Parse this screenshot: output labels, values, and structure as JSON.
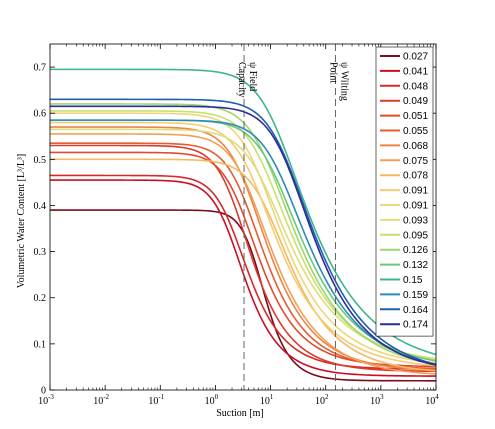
{
  "chart_data": {
    "type": "line",
    "xlabel": "Suction [m]",
    "ylabel": "Volumetric Water Content [L³/L³]",
    "x_scale": "log",
    "xlim": [
      0.001,
      10000
    ],
    "ylim": [
      0,
      0.75
    ],
    "x_ticks": [
      "10-3",
      "10-2",
      "10-1",
      "100",
      "101",
      "102",
      "103",
      "104"
    ],
    "y_ticks": [
      "0",
      "0.1",
      "0.2",
      "0.3",
      "0.4",
      "0.5",
      "0.6",
      "0.7"
    ],
    "legend_position": "top-right",
    "annotations": [
      {
        "text": "ψ Field Capacity",
        "x": 3.3
      },
      {
        "text": "ψ Wilting Point",
        "x": 150
      }
    ],
    "series": [
      {
        "name": "0.027",
        "color": "#7a0a1e",
        "theta_r": 0.02,
        "theta_s": 0.39,
        "alpha": 0.18,
        "n": 2.4
      },
      {
        "name": "0.041",
        "color": "#c80f24",
        "theta_r": 0.03,
        "theta_s": 0.455,
        "alpha": 0.55,
        "n": 1.9
      },
      {
        "name": "0.048",
        "color": "#d62828",
        "theta_r": 0.045,
        "theta_s": 0.465,
        "alpha": 0.5,
        "n": 1.85
      },
      {
        "name": "0.049",
        "color": "#dc3a2a",
        "theta_r": 0.04,
        "theta_s": 0.53,
        "alpha": 0.45,
        "n": 1.8
      },
      {
        "name": "0.051",
        "color": "#e04a2e",
        "theta_r": 0.05,
        "theta_s": 0.515,
        "alpha": 0.35,
        "n": 1.75
      },
      {
        "name": "0.055",
        "color": "#e45c32",
        "theta_r": 0.045,
        "theta_s": 0.535,
        "alpha": 0.3,
        "n": 1.7
      },
      {
        "name": "0.068",
        "color": "#ee8444",
        "theta_r": 0.04,
        "theta_s": 0.57,
        "alpha": 0.28,
        "n": 1.65
      },
      {
        "name": "0.075",
        "color": "#f2a052",
        "theta_r": 0.03,
        "theta_s": 0.555,
        "alpha": 0.25,
        "n": 1.6
      },
      {
        "name": "0.078",
        "color": "#f5b85e",
        "theta_r": 0.035,
        "theta_s": 0.5,
        "alpha": 0.12,
        "n": 1.6
      },
      {
        "name": "0.091",
        "color": "#f6cc70",
        "theta_r": 0.045,
        "theta_s": 0.58,
        "alpha": 0.22,
        "n": 1.55
      },
      {
        "name": "0.091",
        "color": "#f0d67a",
        "theta_r": 0.05,
        "theta_s": 0.6,
        "alpha": 0.18,
        "n": 1.55
      },
      {
        "name": "0.093",
        "color": "#dede78",
        "theta_r": 0.055,
        "theta_s": 0.565,
        "alpha": 0.15,
        "n": 1.5
      },
      {
        "name": "0.095",
        "color": "#c8e070",
        "theta_r": 0.05,
        "theta_s": 0.605,
        "alpha": 0.14,
        "n": 1.5
      },
      {
        "name": "0.126",
        "color": "#a0d66e",
        "theta_r": 0.04,
        "theta_s": 0.62,
        "alpha": 0.12,
        "n": 1.5
      },
      {
        "name": "0.132",
        "color": "#6cc878",
        "theta_r": 0.045,
        "theta_s": 0.585,
        "alpha": 0.09,
        "n": 1.5
      },
      {
        "name": "0.15",
        "color": "#3eb492",
        "theta_r": 0.045,
        "theta_s": 0.695,
        "alpha": 0.08,
        "n": 1.45
      },
      {
        "name": "0.159",
        "color": "#2c8bba",
        "theta_r": 0.035,
        "theta_s": 0.585,
        "alpha": 0.07,
        "n": 1.5
      },
      {
        "name": "0.164",
        "color": "#1e5fb0",
        "theta_r": 0.03,
        "theta_s": 0.63,
        "alpha": 0.055,
        "n": 1.5
      },
      {
        "name": "0.174",
        "color": "#2a2e94",
        "theta_r": 0.035,
        "theta_s": 0.615,
        "alpha": 0.05,
        "n": 1.55
      }
    ]
  }
}
